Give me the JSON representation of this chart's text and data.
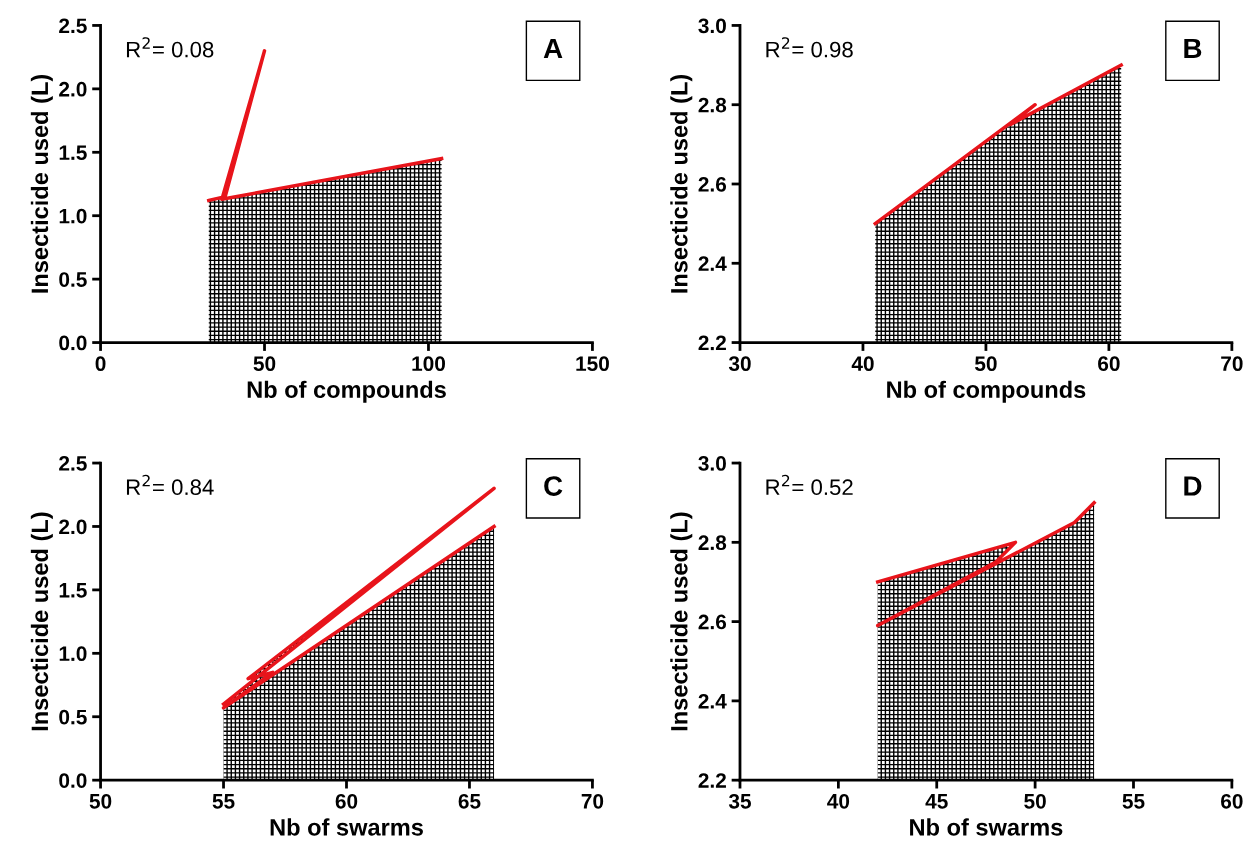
{
  "chart_data": [
    {
      "type": "area",
      "xlabel": "Nb of compounds",
      "ylabel": "Insecticide used (L)",
      "xlim": [
        0,
        150
      ],
      "xticks": [
        0,
        50,
        100,
        150
      ],
      "ylim": [
        0,
        2.5
      ],
      "yticks": [
        {
          "value": 0,
          "label": "0.0"
        },
        {
          "value": 0.5,
          "label": "0.5"
        },
        {
          "value": 1,
          "label": "1.0"
        },
        {
          "value": 1.5,
          "label": "1.5"
        },
        {
          "value": 2,
          "label": "2.0"
        },
        {
          "value": 2.5,
          "label": "2.5"
        }
      ],
      "annotations": [
        "R$^{2}$= 0.08",
        "A"
      ],
      "series": [
        {
          "color": "#e8141b",
          "x": [
            33,
            38,
            50,
            37,
            104
          ],
          "values": [
            1.12,
            1.15,
            2.3,
            1.13,
            1.45
          ]
        }
      ]
    },
    {
      "type": "area",
      "xlabel": "Nb of compounds",
      "ylabel": "Insecticide used (L)",
      "xlim": [
        30,
        70
      ],
      "xticks": [
        30,
        40,
        50,
        60,
        70
      ],
      "ylim": [
        2.2,
        3.0
      ],
      "yticks": [
        {
          "value": 2.2,
          "label": "2.2"
        },
        {
          "value": 2.4,
          "label": "2.4"
        },
        {
          "value": 2.6,
          "label": "2.6"
        },
        {
          "value": 2.8,
          "label": "2.8"
        },
        {
          "value": 3.0,
          "label": "3.0"
        }
      ],
      "annotations": [
        "R$^{2}$= 0.98",
        "B"
      ],
      "series": [
        {
          "color": "#e8141b",
          "x": [
            41,
            54,
            52,
            61
          ],
          "values": [
            2.5,
            2.8,
            2.75,
            2.9
          ]
        }
      ]
    },
    {
      "type": "area",
      "xlabel": "Nb of swarms",
      "ylabel": "Insecticide used (L)",
      "xlim": [
        50,
        70
      ],
      "xticks": [
        50,
        55,
        60,
        65,
        70
      ],
      "ylim": [
        0,
        2.5
      ],
      "yticks": [
        {
          "value": 0,
          "label": "0.0"
        },
        {
          "value": 0.5,
          "label": "0.5"
        },
        {
          "value": 1,
          "label": "1.0"
        },
        {
          "value": 1.5,
          "label": "1.5"
        },
        {
          "value": 2,
          "label": "2.0"
        },
        {
          "value": 2.5,
          "label": "2.5"
        }
      ],
      "annotations": [
        "R$^{2}$= 0.84",
        "C"
      ],
      "series": [
        {
          "color": "#e8141b",
          "x": [
            55,
            66,
            56,
            57,
            55,
            66
          ],
          "values": [
            0.6,
            2.3,
            0.8,
            0.85,
            0.57,
            2.0
          ]
        }
      ]
    },
    {
      "type": "area",
      "xlabel": "Nb of swarms",
      "ylabel": "Insecticide used (L)",
      "xlim": [
        35,
        60
      ],
      "xticks": [
        35,
        40,
        45,
        50,
        55,
        60
      ],
      "ylim": [
        2.2,
        3.0
      ],
      "yticks": [
        {
          "value": 2.2,
          "label": "2.2"
        },
        {
          "value": 2.4,
          "label": "2.4"
        },
        {
          "value": 2.6,
          "label": "2.6"
        },
        {
          "value": 2.8,
          "label": "2.8"
        },
        {
          "value": 3.0,
          "label": "3.0"
        }
      ],
      "annotations": [
        "R$^{2}$= 0.52",
        "D"
      ],
      "series": [
        {
          "color": "#e8141b",
          "x": [
            42,
            49,
            48,
            42,
            52,
            53
          ],
          "values": [
            2.7,
            2.8,
            2.75,
            2.59,
            2.85,
            2.9
          ]
        }
      ]
    }
  ]
}
